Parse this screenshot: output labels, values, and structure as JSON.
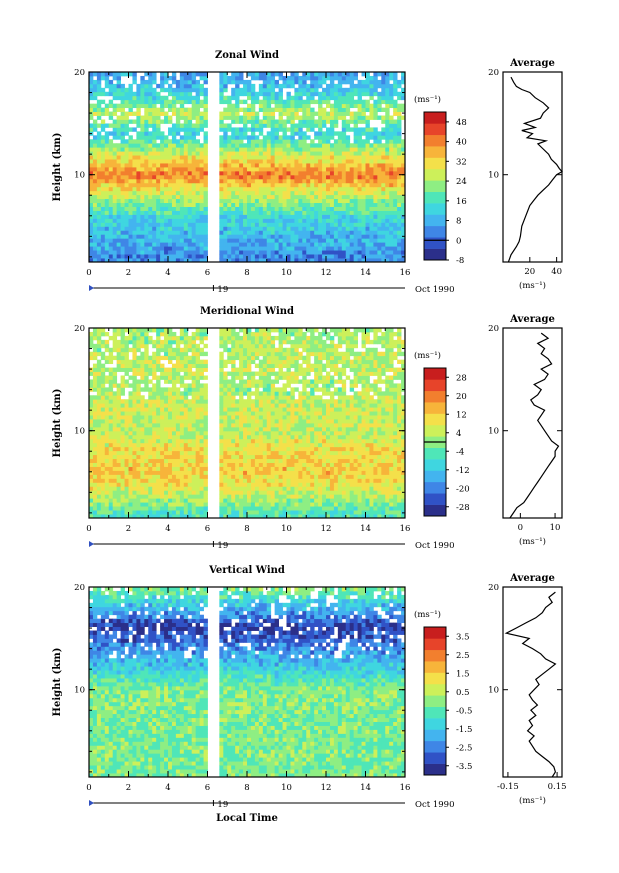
{
  "colormap": [
    "#2b2f8a",
    "#3052c6",
    "#3f86e6",
    "#43b4ef",
    "#3fd6e0",
    "#4fe6b8",
    "#8eee83",
    "#cdf05a",
    "#f4e04a",
    "#f7b43a",
    "#f27f2e",
    "#e7442a",
    "#c81e1e"
  ],
  "time_axis": {
    "ticks": [
      "0",
      "2",
      "4",
      "6",
      "8",
      "10",
      "12",
      "14",
      "16"
    ],
    "date_marker": "19",
    "date_label": "Oct 1990",
    "xlabel": "Local Time"
  },
  "chart_data": [
    {
      "type": "heatmap",
      "title": "Zonal Wind",
      "ylabel": "Height (km)",
      "yticks": [
        "10",
        "20"
      ],
      "xlim": [
        0,
        16
      ],
      "ylim": [
        1.5,
        20
      ],
      "gap": [
        5.9,
        6.6
      ],
      "colorbar": {
        "unit": "(ms⁻¹)",
        "ticks": [
          "48",
          "40",
          "32",
          "24",
          "16",
          "8",
          "0",
          "-8"
        ],
        "range": [
          -8,
          52
        ],
        "zero_line": 0
      },
      "data_profile": [
        {
          "h": 2,
          "v": 4
        },
        {
          "h": 4,
          "v": 9
        },
        {
          "h": 6,
          "v": 14
        },
        {
          "h": 8,
          "v": 26
        },
        {
          "h": 10,
          "v": 40
        },
        {
          "h": 11,
          "v": 34
        },
        {
          "h": 12,
          "v": 28
        },
        {
          "h": 14,
          "v": 12
        },
        {
          "h": 16,
          "v": 26
        },
        {
          "h": 18,
          "v": 12
        },
        {
          "h": 20,
          "v": 6
        }
      ],
      "average": {
        "title": "Average",
        "xlabel": "(ms⁻¹)",
        "xticks": [
          "20",
          "40"
        ],
        "yticks": [
          "10",
          "20"
        ],
        "xlim": [
          0,
          44
        ],
        "ylim": [
          1.5,
          20
        ],
        "h": [
          1.5,
          2.2,
          3,
          3.5,
          4,
          5,
          6,
          7,
          7.5,
          8,
          8.5,
          9,
          9.5,
          10,
          10.3,
          10.6,
          11,
          11.5,
          12,
          12.5,
          13,
          13.3,
          13.6,
          14,
          14.3,
          14.6,
          15,
          15.5,
          16,
          16.5,
          17,
          17.5,
          18,
          18.3,
          18.6,
          19,
          19.5
        ],
        "u": [
          4,
          6,
          10,
          12,
          13,
          14,
          17,
          20,
          23,
          26,
          30,
          34,
          37,
          40,
          44,
          42,
          40,
          36,
          34,
          30,
          26,
          32,
          18,
          22,
          14,
          24,
          16,
          28,
          30,
          34,
          30,
          24,
          20,
          14,
          10,
          8,
          6
        ]
      }
    },
    {
      "type": "heatmap",
      "title": "Meridional Wind",
      "ylabel": "Height (km)",
      "yticks": [
        "10",
        "20"
      ],
      "xlim": [
        0,
        16
      ],
      "ylim": [
        1.5,
        20
      ],
      "gap": [
        5.9,
        6.6
      ],
      "colorbar": {
        "unit": "(ms⁻¹)",
        "ticks": [
          "28",
          "20",
          "12",
          "4",
          "-4",
          "-12",
          "-20",
          "-28"
        ],
        "range": [
          -32,
          32
        ],
        "zero_line": 0
      },
      "data_profile": [
        {
          "h": 2,
          "v": -6
        },
        {
          "h": 4,
          "v": 6
        },
        {
          "h": 6,
          "v": 12
        },
        {
          "h": 8,
          "v": 10
        },
        {
          "h": 10,
          "v": 4
        },
        {
          "h": 12,
          "v": 6
        },
        {
          "h": 14,
          "v": 2
        },
        {
          "h": 16,
          "v": 4
        },
        {
          "h": 18,
          "v": 3
        },
        {
          "h": 20,
          "v": 2
        }
      ],
      "average": {
        "title": "Average",
        "xlabel": "(ms⁻¹)",
        "xticks": [
          "0",
          "10"
        ],
        "yticks": [
          "10",
          "20"
        ],
        "xlim": [
          -5,
          12
        ],
        "ylim": [
          1.5,
          20
        ],
        "h": [
          1.5,
          2,
          2.5,
          3,
          3.5,
          4,
          4.5,
          5,
          5.5,
          6,
          6.5,
          7,
          7.5,
          8,
          8.5,
          9,
          9.5,
          10,
          10.5,
          11,
          11.5,
          12,
          12.5,
          13,
          13.5,
          14,
          14.5,
          15,
          15.5,
          16,
          16.5,
          17,
          17.5,
          18,
          18.5,
          19,
          19.5
        ],
        "u": [
          -3,
          -2,
          -1,
          1,
          2,
          3,
          4,
          5,
          6,
          7,
          8,
          9,
          10,
          10,
          11,
          9,
          8,
          7,
          6,
          5,
          6,
          7,
          4,
          3,
          5,
          6,
          4,
          7,
          8,
          6,
          9,
          8,
          6,
          7,
          5,
          8,
          6
        ]
      }
    },
    {
      "type": "heatmap",
      "title": "Vertical Wind",
      "ylabel": "Height (km)",
      "yticks": [
        "10",
        "20"
      ],
      "xlim": [
        0,
        16
      ],
      "ylim": [
        1.5,
        20
      ],
      "gap": [
        5.9,
        6.6
      ],
      "colorbar": {
        "unit": "(ms⁻¹)",
        "ticks": [
          "3.5",
          "2.5",
          "1.5",
          "0.5",
          "-0.5",
          "-1.5",
          "-2.5",
          "-3.5"
        ],
        "range": [
          -4,
          4
        ]
      },
      "data_profile": [
        {
          "h": 2,
          "v": -0.2
        },
        {
          "h": 10,
          "v": -0.1
        },
        {
          "h": 16,
          "v": -3.5
        },
        {
          "h": 20,
          "v": 0
        }
      ],
      "average": {
        "title": "Average",
        "xlabel": "(ms⁻¹)",
        "xticks": [
          "-0.15",
          "0.15"
        ],
        "yticks": [
          "10",
          "20"
        ],
        "xlim": [
          -0.18,
          0.18
        ],
        "ylim": [
          1.5,
          20
        ],
        "h": [
          1.5,
          2,
          2.5,
          3,
          3.5,
          4,
          4.5,
          5,
          5.5,
          6,
          6.5,
          7,
          7.5,
          8,
          8.5,
          9,
          9.5,
          10,
          10.5,
          11,
          11.5,
          12,
          12.5,
          13,
          13.5,
          14,
          14.5,
          15,
          15.5,
          16,
          16.5,
          17,
          17.5,
          18,
          18.5,
          19,
          19.5
        ],
        "u": [
          0.12,
          0.14,
          0.13,
          0.1,
          0.06,
          0.02,
          0.0,
          -0.02,
          0.01,
          -0.03,
          0.0,
          -0.02,
          0.02,
          -0.01,
          0.03,
          0.0,
          -0.02,
          0.01,
          0.04,
          0.02,
          0.06,
          0.1,
          0.14,
          0.08,
          0.05,
          0.0,
          -0.06,
          -0.02,
          -0.16,
          -0.1,
          -0.04,
          0.02,
          0.06,
          0.08,
          0.12,
          0.1,
          0.14
        ]
      }
    }
  ]
}
